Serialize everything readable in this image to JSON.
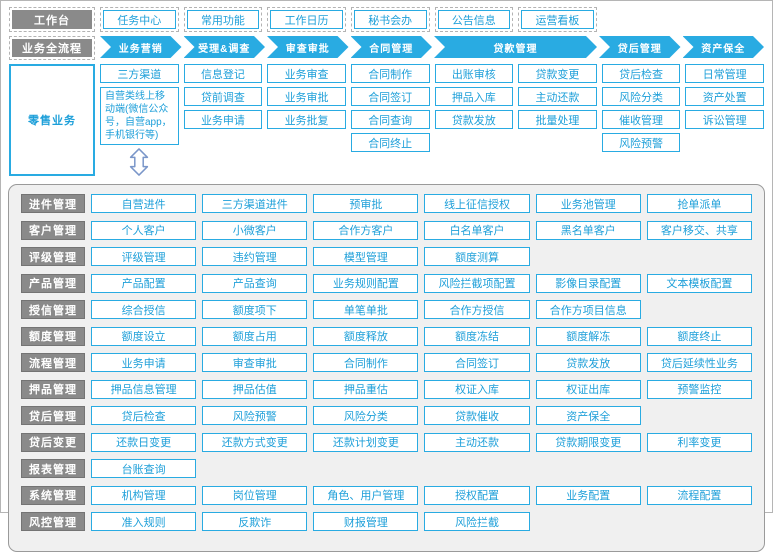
{
  "colors": {
    "accent": "#29abe2",
    "accent_text": "#1d9fd9",
    "label_bg": "#8a8a8a",
    "panel_bg": "#f0f0f0"
  },
  "workbench": {
    "label": "工作台",
    "items": [
      "任务中心",
      "常用功能",
      "工作日历",
      "秘书会办",
      "公告信息",
      "运营看板"
    ]
  },
  "flow": {
    "label": "业务全流程",
    "stages": [
      {
        "label": "业务营销"
      },
      {
        "label": "受理&调查"
      },
      {
        "label": "审查审批"
      },
      {
        "label": "合同管理"
      },
      {
        "label": "贷款管理",
        "span": 2
      },
      {
        "label": "贷后管理"
      },
      {
        "label": "资产保全"
      }
    ]
  },
  "retail": {
    "label": "零售业务",
    "columns": [
      [
        "三方渠道",
        "自营类线上移动端(微信公众号，自营app，手机银行等)"
      ],
      [
        "信息登记",
        "贷前调查",
        "业务申请"
      ],
      [
        "业务审查",
        "业务审批",
        "业务批复"
      ],
      [
        "合同制作",
        "合同签订",
        "合同查询",
        "合同终止"
      ],
      [
        "出账审核",
        "押品入库",
        "贷款发放"
      ],
      [
        "贷款变更",
        "主动还款",
        "批量处理"
      ],
      [
        "贷后检查",
        "风险分类",
        "催收管理",
        "风险预警"
      ],
      [
        "日常管理",
        "资产处置",
        "诉讼管理"
      ]
    ],
    "arrow_icon": "up-down-arrow"
  },
  "modules": [
    {
      "label": "进件管理",
      "items": [
        "自营进件",
        "三方渠道进件",
        "预审批",
        "线上征信授权",
        "业务池管理",
        "抢单派单"
      ]
    },
    {
      "label": "客户管理",
      "items": [
        "个人客户",
        "小微客户",
        "合作方客户",
        "白名单客户",
        "黑名单客户",
        "客户移交、共享"
      ]
    },
    {
      "label": "评级管理",
      "items": [
        "评级管理",
        "违约管理",
        "模型管理",
        "额度测算"
      ]
    },
    {
      "label": "产品管理",
      "items": [
        "产品配置",
        "产品查询",
        "业务规则配置",
        "风险拦截项配置",
        "影像目录配置",
        "文本模板配置"
      ]
    },
    {
      "label": "授信管理",
      "items": [
        "综合授信",
        "额度项下",
        "单笔单批",
        "合作方授信",
        "合作方项目信息"
      ]
    },
    {
      "label": "额度管理",
      "items": [
        "额度设立",
        "额度占用",
        "额度释放",
        "额度冻结",
        "额度解冻",
        "额度终止"
      ]
    },
    {
      "label": "流程管理",
      "items": [
        "业务申请",
        "审查审批",
        "合同制作",
        "合同签订",
        "贷款发放",
        "贷后延续性业务"
      ]
    },
    {
      "label": "押品管理",
      "items": [
        "押品信息管理",
        "押品估值",
        "押品重估",
        "权证入库",
        "权证出库",
        "预警监控"
      ]
    },
    {
      "label": "贷后管理",
      "items": [
        "贷后检查",
        "风险预警",
        "风险分类",
        "贷款催收",
        "资产保全"
      ]
    },
    {
      "label": "贷后变更",
      "items": [
        "还款日变更",
        "还款方式变更",
        "还款计划变更",
        "主动还款",
        "贷款期限变更",
        "利率变更"
      ]
    },
    {
      "label": "报表管理",
      "items": [
        "台账查询"
      ]
    },
    {
      "label": "系统管理",
      "items": [
        "机构管理",
        "岗位管理",
        "角色、用户管理",
        "授权配置",
        "业务配置",
        "流程配置"
      ]
    },
    {
      "label": "风控管理",
      "items": [
        "准入规则",
        "反欺诈",
        "财报管理",
        "风险拦截"
      ]
    }
  ]
}
